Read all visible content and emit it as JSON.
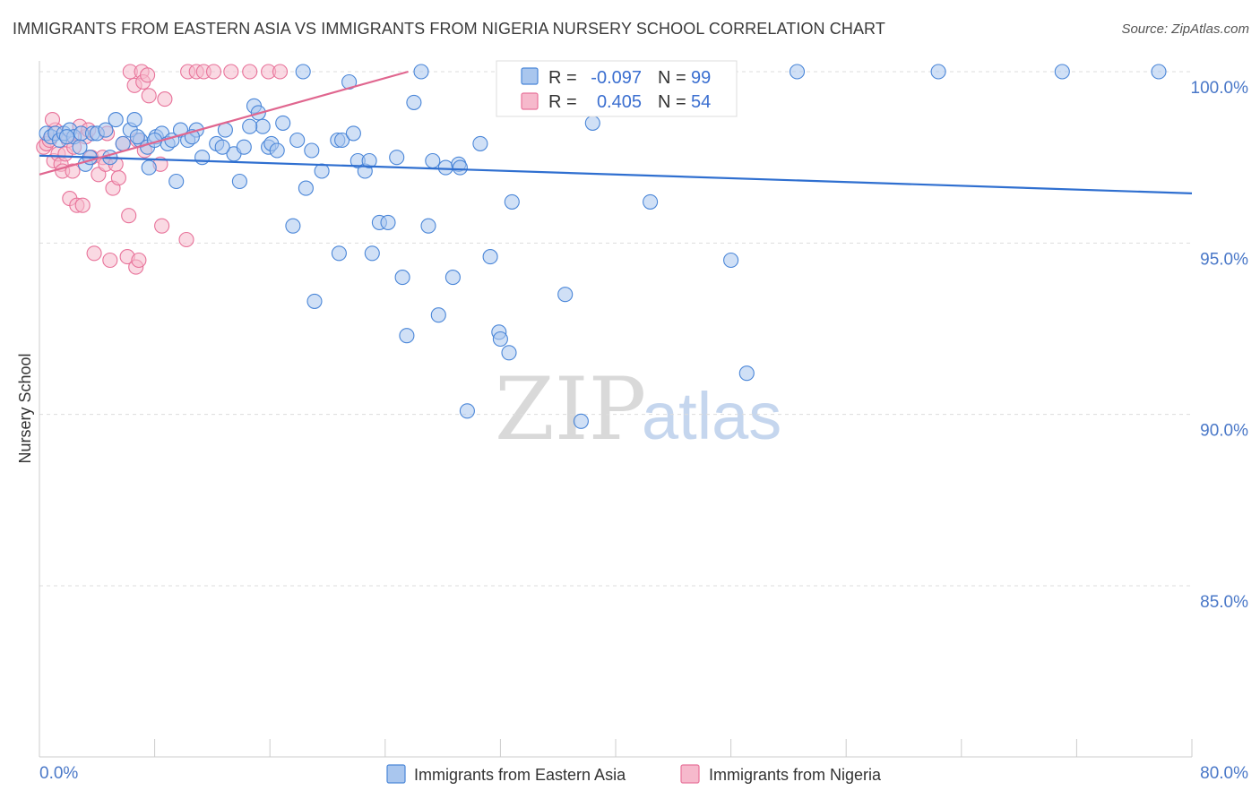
{
  "title": "IMMIGRANTS FROM EASTERN ASIA VS IMMIGRANTS FROM NIGERIA NURSERY SCHOOL CORRELATION CHART",
  "source": "Source: ZipAtlas.com",
  "watermark": {
    "zip": "ZIP",
    "atlas": "atlas"
  },
  "colors": {
    "blue": "#4a86d8",
    "blue_fill": "#a9c6ee",
    "pink": "#e8739a",
    "pink_fill": "#f6b9cc",
    "tick_label": "#4a78c8",
    "grid": "#dddddd"
  },
  "stats": [
    {
      "r_label": "R =",
      "r_value": "-0.097",
      "n_label": "N =",
      "n_value": "99"
    },
    {
      "r_label": "R =",
      "r_value": "0.405",
      "n_label": "N =",
      "n_value": "54"
    }
  ],
  "chart_data": {
    "type": "scatter",
    "title": "IMMIGRANTS FROM EASTERN ASIA VS IMMIGRANTS FROM NIGERIA NURSERY SCHOOL CORRELATION CHART",
    "xlabel": "",
    "ylabel": "Nursery School",
    "xlim": [
      0,
      80
    ],
    "ylim": [
      80,
      100.5
    ],
    "x_tick_labels": [
      "0.0%",
      "80.0%"
    ],
    "y_ticks": [
      85,
      90,
      95,
      100
    ],
    "y_tick_labels": [
      "85.0%",
      "90.0%",
      "95.0%",
      "100.0%"
    ],
    "grid": true,
    "legend_position": "bottom",
    "series": [
      {
        "name": "Immigrants from Eastern Asia",
        "color": "blue",
        "trend": {
          "x": [
            0,
            80
          ],
          "y": [
            97.55,
            96.45
          ]
        },
        "points": [
          [
            0.5,
            98.2
          ],
          [
            0.8,
            98.1
          ],
          [
            1.1,
            98.2
          ],
          [
            1.4,
            98.0
          ],
          [
            1.7,
            98.2
          ],
          [
            2.1,
            98.3
          ],
          [
            2.4,
            98.1
          ],
          [
            2.9,
            98.2
          ],
          [
            3.2,
            97.3
          ],
          [
            3.5,
            97.5
          ],
          [
            3.7,
            98.2
          ],
          [
            4.0,
            98.2
          ],
          [
            4.6,
            98.3
          ],
          [
            5.3,
            98.6
          ],
          [
            5.8,
            97.9
          ],
          [
            6.3,
            98.3
          ],
          [
            6.6,
            98.6
          ],
          [
            7.0,
            98.0
          ],
          [
            7.5,
            97.8
          ],
          [
            7.6,
            97.2
          ],
          [
            8.1,
            98.1
          ],
          [
            8.5,
            98.2
          ],
          [
            8.9,
            97.9
          ],
          [
            9.2,
            98.0
          ],
          [
            9.5,
            96.8
          ],
          [
            9.8,
            98.3
          ],
          [
            10.3,
            98.0
          ],
          [
            10.9,
            98.3
          ],
          [
            11.3,
            97.5
          ],
          [
            12.3,
            97.9
          ],
          [
            12.9,
            98.3
          ],
          [
            13.5,
            97.6
          ],
          [
            13.9,
            96.8
          ],
          [
            14.2,
            97.8
          ],
          [
            14.9,
            99.0
          ],
          [
            15.2,
            98.8
          ],
          [
            15.5,
            98.4
          ],
          [
            15.9,
            97.8
          ],
          [
            16.1,
            97.9
          ],
          [
            16.5,
            97.7
          ],
          [
            16.9,
            98.5
          ],
          [
            17.6,
            95.5
          ],
          [
            17.9,
            98.0
          ],
          [
            18.5,
            96.6
          ],
          [
            18.9,
            97.7
          ],
          [
            19.1,
            93.3
          ],
          [
            19.6,
            97.1
          ],
          [
            20.7,
            98.0
          ],
          [
            20.8,
            94.7
          ],
          [
            21.0,
            98.0
          ],
          [
            21.5,
            99.7
          ],
          [
            21.8,
            98.2
          ],
          [
            22.1,
            97.4
          ],
          [
            22.6,
            97.1
          ],
          [
            22.9,
            97.4
          ],
          [
            23.1,
            94.7
          ],
          [
            23.6,
            95.6
          ],
          [
            24.2,
            95.6
          ],
          [
            24.8,
            97.5
          ],
          [
            25.2,
            94.0
          ],
          [
            25.5,
            92.3
          ],
          [
            26.0,
            99.1
          ],
          [
            26.5,
            100.0
          ],
          [
            27.0,
            95.5
          ],
          [
            27.3,
            97.4
          ],
          [
            27.7,
            92.9
          ],
          [
            28.2,
            97.2
          ],
          [
            28.7,
            94.0
          ],
          [
            29.1,
            97.3
          ],
          [
            29.2,
            97.2
          ],
          [
            29.7,
            90.1
          ],
          [
            30.6,
            97.9
          ],
          [
            31.3,
            94.6
          ],
          [
            31.9,
            92.4
          ],
          [
            32.0,
            92.2
          ],
          [
            32.6,
            91.8
          ],
          [
            32.8,
            96.2
          ],
          [
            34.5,
            100.0
          ],
          [
            36.5,
            93.5
          ],
          [
            37.3,
            100.0
          ],
          [
            37.6,
            89.8
          ],
          [
            38.4,
            98.5
          ],
          [
            42.4,
            96.2
          ],
          [
            43.4,
            100.0
          ],
          [
            48.0,
            94.5
          ],
          [
            49.1,
            91.2
          ],
          [
            52.6,
            100.0
          ],
          [
            62.4,
            100.0
          ],
          [
            71.0,
            100.0
          ],
          [
            77.7,
            100.0
          ],
          [
            18.3,
            100.0
          ],
          [
            12.7,
            97.8
          ],
          [
            8.0,
            98.0
          ],
          [
            4.9,
            97.5
          ],
          [
            6.8,
            98.1
          ],
          [
            10.6,
            98.1
          ],
          [
            14.6,
            98.4
          ],
          [
            2.8,
            97.8
          ],
          [
            1.9,
            98.1
          ]
        ]
      },
      {
        "name": "Immigrants from Nigeria",
        "color": "pink",
        "trend": {
          "x": [
            0,
            25.6
          ],
          "y": [
            97.0,
            100.0
          ]
        },
        "points": [
          [
            0.3,
            97.8
          ],
          [
            0.5,
            97.9
          ],
          [
            0.7,
            98.0
          ],
          [
            1.0,
            97.4
          ],
          [
            1.1,
            98.3
          ],
          [
            1.3,
            97.6
          ],
          [
            1.5,
            97.3
          ],
          [
            1.6,
            97.1
          ],
          [
            1.8,
            97.6
          ],
          [
            2.0,
            98.0
          ],
          [
            2.1,
            96.3
          ],
          [
            2.4,
            97.8
          ],
          [
            2.6,
            96.1
          ],
          [
            2.8,
            98.4
          ],
          [
            3.0,
            96.1
          ],
          [
            3.2,
            98.1
          ],
          [
            3.4,
            98.3
          ],
          [
            3.6,
            97.5
          ],
          [
            3.8,
            94.7
          ],
          [
            4.1,
            97.0
          ],
          [
            4.4,
            97.5
          ],
          [
            4.6,
            97.3
          ],
          [
            4.7,
            98.2
          ],
          [
            4.9,
            94.5
          ],
          [
            5.1,
            96.6
          ],
          [
            5.3,
            97.3
          ],
          [
            5.5,
            96.9
          ],
          [
            5.8,
            97.9
          ],
          [
            6.1,
            94.6
          ],
          [
            6.2,
            95.8
          ],
          [
            6.3,
            100.0
          ],
          [
            6.6,
            99.6
          ],
          [
            6.7,
            94.3
          ],
          [
            6.8,
            98.0
          ],
          [
            6.9,
            94.5
          ],
          [
            7.1,
            100.0
          ],
          [
            7.2,
            99.7
          ],
          [
            7.3,
            97.7
          ],
          [
            7.5,
            99.9
          ],
          [
            7.6,
            99.3
          ],
          [
            8.4,
            97.3
          ],
          [
            8.5,
            95.5
          ],
          [
            8.7,
            99.2
          ],
          [
            10.2,
            95.1
          ],
          [
            10.3,
            100.0
          ],
          [
            10.9,
            100.0
          ],
          [
            11.4,
            100.0
          ],
          [
            12.1,
            100.0
          ],
          [
            13.3,
            100.0
          ],
          [
            14.6,
            100.0
          ],
          [
            15.9,
            100.0
          ],
          [
            16.7,
            100.0
          ],
          [
            0.9,
            98.6
          ],
          [
            2.3,
            97.1
          ]
        ]
      }
    ]
  },
  "legend": {
    "series_a": "Immigrants from Eastern Asia",
    "series_b": "Immigrants from Nigeria"
  }
}
